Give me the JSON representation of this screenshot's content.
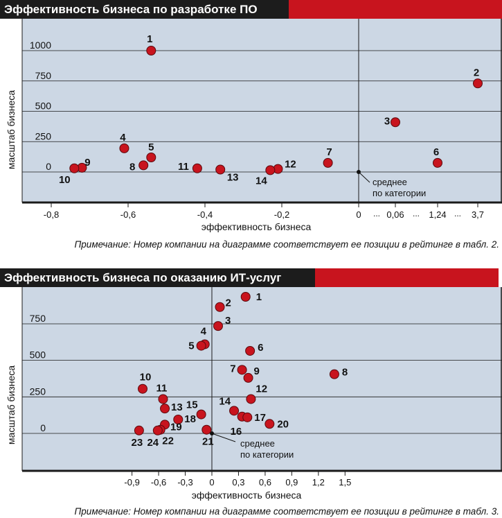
{
  "colors": {
    "panel_bg": "#ccd7e4",
    "grid": "#1a1a1a",
    "point": "#c8141e",
    "header_black": "#1c1c1c",
    "header_red": "#c8141e"
  },
  "chart_data": [
    {
      "type": "scatter",
      "title": "Эффективность бизнеса по разработке ПО",
      "xlabel": "эффективность бизнеса",
      "ylabel": "масштаб бизнеса",
      "note": "Примечание: Номер компании на диаграмме соответствует ее позиции в рейтинге в табл. 2.",
      "mean_label": [
        "среднее",
        "по категории"
      ],
      "x_ticks": [
        "-0,8",
        "-0,6",
        "-0,4",
        "-0,2",
        "0",
        "0,06",
        "1,24",
        "3,7"
      ],
      "x_breaks": [
        "...",
        "...",
        "..."
      ],
      "y_ticks": [
        "0",
        "250",
        "500",
        "750",
        "1000"
      ],
      "ylim": [
        -170,
        1110
      ],
      "grid": true,
      "points": [
        {
          "label": "1",
          "x": -0.54,
          "y": 1000
        },
        {
          "label": "2",
          "x": 3.7,
          "y": 730
        },
        {
          "label": "3",
          "x": 0.06,
          "y": 410
        },
        {
          "label": "4",
          "x": -0.61,
          "y": 195
        },
        {
          "label": "5",
          "x": -0.54,
          "y": 120
        },
        {
          "label": "6",
          "x": 1.24,
          "y": 75
        },
        {
          "label": "7",
          "x": -0.08,
          "y": 75
        },
        {
          "label": "8",
          "x": -0.56,
          "y": 55
        },
        {
          "label": "9",
          "x": -0.72,
          "y": 35
        },
        {
          "label": "10",
          "x": -0.74,
          "y": 30
        },
        {
          "label": "11",
          "x": -0.42,
          "y": 30
        },
        {
          "label": "12",
          "x": -0.21,
          "y": 25
        },
        {
          "label": "13",
          "x": -0.36,
          "y": 20
        },
        {
          "label": "14",
          "x": -0.23,
          "y": 15
        }
      ]
    },
    {
      "type": "scatter",
      "title": "Эффективность бизнеса по оказанию ИТ-услуг",
      "xlabel": "эффективность бизнеса",
      "ylabel": "масштаб бизнеса",
      "note": "Примечание: Номер компании на диаграмме соответствует ее позиции в рейтинге в табл. 3.",
      "mean_label": [
        "среднее",
        "по категории"
      ],
      "x_ticks": [
        "-0,9",
        "-0,6",
        "-0,3",
        "0",
        "0,3",
        "0,6",
        "0,9",
        "1,2",
        "1,5"
      ],
      "y_ticks": [
        "0",
        "250",
        "500",
        "750"
      ],
      "xlim": [
        -1.05,
        1.65
      ],
      "ylim": [
        -210,
        990
      ],
      "grid": true,
      "points": [
        {
          "label": "1",
          "x": 0.38,
          "y": 935
        },
        {
          "label": "2",
          "x": 0.09,
          "y": 865
        },
        {
          "label": "3",
          "x": 0.07,
          "y": 735
        },
        {
          "label": "4",
          "x": -0.08,
          "y": 610
        },
        {
          "label": "5",
          "x": -0.12,
          "y": 600
        },
        {
          "label": "6",
          "x": 0.43,
          "y": 565
        },
        {
          "label": "7",
          "x": 0.34,
          "y": 435
        },
        {
          "label": "8",
          "x": 1.38,
          "y": 405
        },
        {
          "label": "9",
          "x": 0.41,
          "y": 380
        },
        {
          "label": "10",
          "x": -0.78,
          "y": 305
        },
        {
          "label": "11",
          "x": -0.55,
          "y": 235
        },
        {
          "label": "12",
          "x": 0.44,
          "y": 235
        },
        {
          "label": "13",
          "x": -0.53,
          "y": 170
        },
        {
          "label": "14",
          "x": 0.25,
          "y": 155
        },
        {
          "label": "15",
          "x": -0.12,
          "y": 130
        },
        {
          "label": "16",
          "x": 0.34,
          "y": 115
        },
        {
          "label": "17",
          "x": 0.4,
          "y": 110
        },
        {
          "label": "18",
          "x": -0.38,
          "y": 95
        },
        {
          "label": "19",
          "x": -0.53,
          "y": 60
        },
        {
          "label": "20",
          "x": 0.65,
          "y": 65
        },
        {
          "label": "21",
          "x": -0.06,
          "y": 25
        },
        {
          "label": "22",
          "x": -0.58,
          "y": 25
        },
        {
          "label": "23",
          "x": -0.82,
          "y": 20
        },
        {
          "label": "24",
          "x": -0.61,
          "y": 20
        }
      ]
    }
  ]
}
